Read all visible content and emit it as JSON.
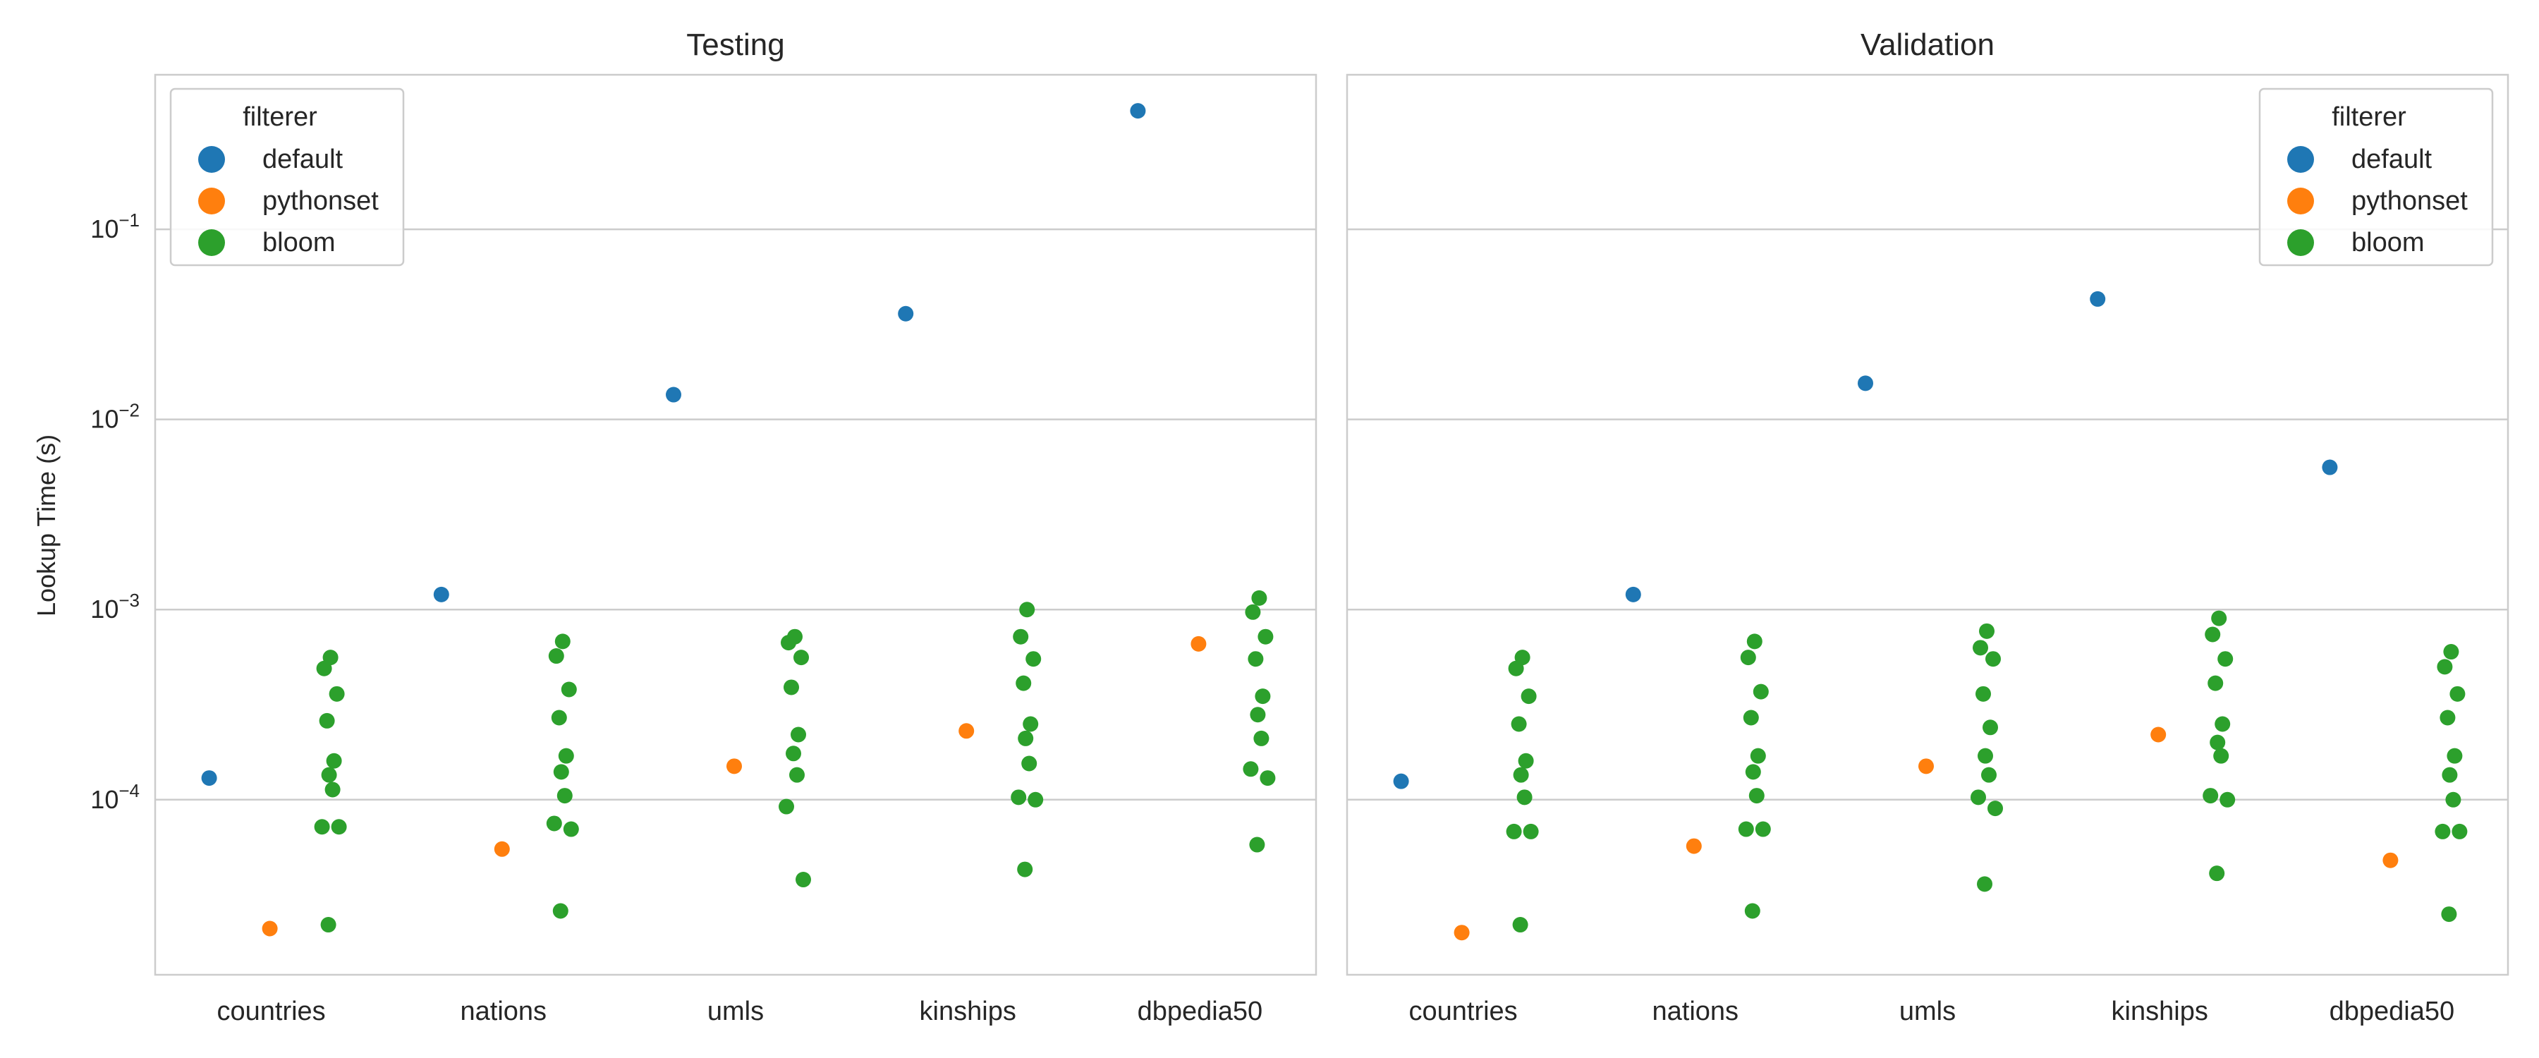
{
  "figure": {
    "ylabel": "Lookup Time (s)",
    "yscale": "log",
    "ylim": [
      1.2e-05,
      0.65
    ],
    "yticks": [
      {
        "value": 0.0001,
        "base": "10",
        "exp": "−4"
      },
      {
        "value": 0.001,
        "base": "10",
        "exp": "−3"
      },
      {
        "value": 0.01,
        "base": "10",
        "exp": "−2"
      },
      {
        "value": 0.1,
        "base": "10",
        "exp": "−1"
      }
    ],
    "grid": true
  },
  "legend": {
    "title": "filterer",
    "entries": [
      {
        "label": "default",
        "color": "#1f77b4"
      },
      {
        "label": "pythonset",
        "color": "#ff7f0e"
      },
      {
        "label": "bloom",
        "color": "#2ca02c"
      }
    ]
  },
  "chart_data": [
    {
      "type": "scatter",
      "title": "Testing",
      "legend_position": "top-left",
      "categories": [
        "countries",
        "nations",
        "umls",
        "kinships",
        "dbpedia50"
      ],
      "ylabel": "Lookup Time (s)",
      "series": [
        {
          "name": "default",
          "color": "#1f77b4",
          "values": [
            [
              0.00013
            ],
            [
              0.0012
            ],
            [
              0.0135
            ],
            [
              0.036
            ],
            [
              0.42
            ]
          ]
        },
        {
          "name": "pythonset",
          "color": "#ff7f0e",
          "values": [
            [
              2.1e-05
            ],
            [
              5.5e-05
            ],
            [
              0.00015
            ],
            [
              0.00023
            ],
            [
              0.00066
            ]
          ]
        },
        {
          "name": "bloom",
          "color": "#2ca02c",
          "values": [
            [
              0.00056,
              0.00049,
              0.00036,
              0.00026,
              0.00016,
              0.000135,
              0.000113,
              7.2e-05,
              7.2e-05,
              2.2e-05
            ],
            [
              0.00068,
              0.00057,
              0.00038,
              0.00027,
              0.00017,
              0.00014,
              0.000105,
              7.5e-05,
              7e-05,
              2.6e-05
            ],
            [
              0.00072,
              0.00067,
              0.00056,
              0.00039,
              0.00022,
              0.000175,
              0.000135,
              9.2e-05,
              3.8e-05
            ],
            [
              0.001,
              0.00072,
              0.00055,
              0.00041,
              0.00025,
              0.00021,
              0.000155,
              0.000103,
              0.0001,
              4.3e-05
            ],
            [
              0.00115,
              0.00097,
              0.00072,
              0.00055,
              0.00035,
              0.00028,
              0.00021,
              0.000145,
              0.00013,
              5.8e-05
            ]
          ]
        }
      ]
    },
    {
      "type": "scatter",
      "title": "Validation",
      "legend_position": "top-right",
      "categories": [
        "countries",
        "nations",
        "umls",
        "kinships",
        "dbpedia50"
      ],
      "series": [
        {
          "name": "default",
          "color": "#1f77b4",
          "values": [
            [
              0.000125
            ],
            [
              0.0012
            ],
            [
              0.0155
            ],
            [
              0.043
            ],
            [
              0.0056
            ]
          ]
        },
        {
          "name": "pythonset",
          "color": "#ff7f0e",
          "values": [
            [
              2e-05
            ],
            [
              5.7e-05
            ],
            [
              0.00015
            ],
            [
              0.00022
            ],
            [
              4.8e-05
            ]
          ]
        },
        {
          "name": "bloom",
          "color": "#2ca02c",
          "values": [
            [
              0.00056,
              0.00049,
              0.00035,
              0.00025,
              0.00016,
              0.000135,
              0.000103,
              6.8e-05,
              6.8e-05,
              2.2e-05
            ],
            [
              0.00068,
              0.00056,
              0.00037,
              0.00027,
              0.00017,
              0.00014,
              0.000105,
              7e-05,
              7e-05,
              2.6e-05
            ],
            [
              0.00077,
              0.00063,
              0.00055,
              0.00036,
              0.00024,
              0.00017,
              0.000135,
              0.000103,
              9e-05,
              3.6e-05
            ],
            [
              0.0009,
              0.00074,
              0.00055,
              0.00041,
              0.00025,
              0.0002,
              0.00017,
              0.000105,
              0.0001,
              4.1e-05
            ],
            [
              0.0006,
              0.0005,
              0.00036,
              0.00027,
              0.00017,
              0.000135,
              0.0001,
              6.8e-05,
              6.8e-05,
              2.5e-05
            ]
          ]
        }
      ]
    }
  ]
}
